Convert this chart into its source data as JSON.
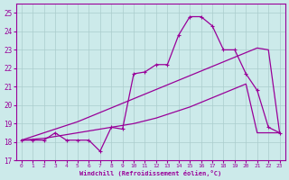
{
  "xlabel": "Windchill (Refroidissement éolien,°C)",
  "xlim": [
    -0.5,
    23.5
  ],
  "ylim": [
    17,
    25.5
  ],
  "yticks": [
    17,
    18,
    19,
    20,
    21,
    22,
    23,
    24,
    25
  ],
  "xticks": [
    0,
    1,
    2,
    3,
    4,
    5,
    6,
    7,
    8,
    9,
    10,
    11,
    12,
    13,
    14,
    15,
    16,
    17,
    18,
    19,
    20,
    21,
    22,
    23
  ],
  "bg_color": "#cceaea",
  "grid_color": "#aacccc",
  "line_color": "#990099",
  "line_jagged": [
    18.1,
    18.1,
    18.1,
    18.5,
    18.1,
    18.1,
    18.1,
    17.5,
    18.8,
    18.7,
    21.7,
    21.8,
    22.2,
    22.2,
    23.8,
    24.8,
    24.8,
    24.3,
    23.0,
    23.0,
    21.7,
    20.8,
    18.8,
    18.5
  ],
  "line_upper": [
    18.1,
    18.3,
    18.5,
    18.7,
    18.9,
    19.1,
    19.35,
    19.6,
    19.85,
    20.1,
    20.35,
    20.6,
    20.85,
    21.1,
    21.35,
    21.6,
    21.85,
    22.1,
    22.35,
    22.6,
    22.85,
    23.1,
    23.0,
    18.5
  ],
  "line_lower": [
    18.1,
    18.15,
    18.2,
    18.3,
    18.4,
    18.5,
    18.6,
    18.7,
    18.8,
    18.9,
    19.0,
    19.15,
    19.3,
    19.5,
    19.7,
    19.9,
    20.15,
    20.4,
    20.65,
    20.9,
    21.15,
    18.5,
    18.5,
    18.5
  ]
}
